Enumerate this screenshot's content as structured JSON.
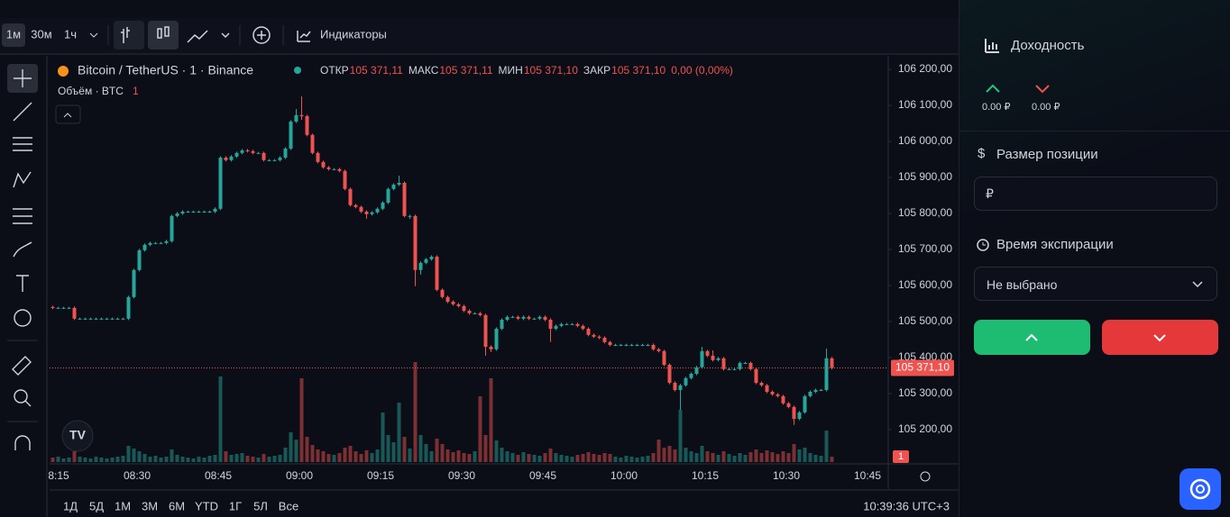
{
  "toolbar": {
    "intervals": [
      "1м",
      "30м",
      "1ч"
    ],
    "indicators": "Индикаторы"
  },
  "chart": {
    "type": "candlestick",
    "symbol": "Bitcoin / TetherUS · 1 · Binance",
    "ohlc": [
      {
        "label": "ОТКР",
        "value": "105 371,11"
      },
      {
        "label": "МАКС",
        "value": "105 371,11"
      },
      {
        "label": "МИН",
        "value": "105 371,10"
      },
      {
        "label": "ЗАКР",
        "value": "105 371,10"
      }
    ],
    "change": "0,00 (0,00%)",
    "volume_label": "Объём · BTC",
    "volume_value": "1",
    "ylim": [
      105105,
      106237.5
    ],
    "yticks": [
      {
        "value": 106200,
        "label": "106 200,00"
      },
      {
        "value": 106100,
        "label": "106 100,00"
      },
      {
        "value": 106000,
        "label": "106 000,00"
      },
      {
        "value": 105900,
        "label": "105 900,00"
      },
      {
        "value": 105800,
        "label": "105 800,00"
      },
      {
        "value": 105700,
        "label": "105 700,00"
      },
      {
        "value": 105600,
        "label": "105 600,00"
      },
      {
        "value": 105500,
        "label": "105 500,00"
      },
      {
        "value": 105400,
        "label": "105 400,00"
      },
      {
        "value": 105300,
        "label": "105 300,00"
      },
      {
        "value": 105200,
        "label": "105 200,00"
      }
    ],
    "last_price": {
      "value": 105371.1,
      "label": "105 371,10"
    },
    "volume_tag": "1",
    "xticks": [
      "8:15",
      "08:30",
      "08:45",
      "09:00",
      "09:15",
      "09:30",
      "09:45",
      "10:00",
      "10:15",
      "10:30",
      "10:45"
    ],
    "up_color": "#26a69a",
    "down_color": "#ef5350",
    "candles": [
      [
        105540,
        105544,
        105534,
        105538
      ],
      [
        105538,
        105541,
        105535,
        105538
      ],
      [
        105538,
        105541,
        105535,
        105538
      ],
      [
        105538,
        105541,
        105535,
        105538
      ],
      [
        105538,
        105542,
        105504,
        105508
      ],
      [
        105508,
        105511,
        105505,
        105508
      ],
      [
        105508,
        105511,
        105505,
        105508
      ],
      [
        105508,
        105511,
        105505,
        105508
      ],
      [
        105508,
        105511,
        105505,
        105508
      ],
      [
        105508,
        105511,
        105505,
        105508
      ],
      [
        105508,
        105511,
        105505,
        105508
      ],
      [
        105508,
        105511,
        105505,
        105508
      ],
      [
        105508,
        105511,
        105505,
        105508
      ],
      [
        105508,
        105511,
        105505,
        105508
      ],
      [
        105508,
        105572,
        105504,
        105568
      ],
      [
        105568,
        105647,
        105564,
        105643
      ],
      [
        105643,
        105702,
        105639,
        105698
      ],
      [
        105698,
        105717,
        105694,
        105713
      ],
      [
        105713,
        105722,
        105709,
        105718
      ],
      [
        105718,
        105721,
        105715,
        105718
      ],
      [
        105718,
        105721,
        105715,
        105718
      ],
      [
        105718,
        105727,
        105714,
        105723
      ],
      [
        105723,
        105797,
        105719,
        105793
      ],
      [
        105793,
        105804,
        105789,
        105800
      ],
      [
        105800,
        105809,
        105796,
        105805
      ],
      [
        105805,
        105808,
        105802,
        105805
      ],
      [
        105805,
        105808,
        105802,
        105805
      ],
      [
        105805,
        105808,
        105802,
        105805
      ],
      [
        105805,
        105808,
        105802,
        105805
      ],
      [
        105805,
        105808,
        105802,
        105805
      ],
      [
        105805,
        105817,
        105801,
        105813
      ],
      [
        105813,
        105959,
        105809,
        105955
      ],
      [
        105955,
        105959,
        105944,
        105948
      ],
      [
        105948,
        105962,
        105944,
        105958
      ],
      [
        105958,
        105972,
        105954,
        105968
      ],
      [
        105968,
        105979,
        105964,
        105975
      ],
      [
        105975,
        105979,
        105969,
        105973
      ],
      [
        105973,
        105977,
        105964,
        105968
      ],
      [
        105968,
        105971,
        105965,
        105968
      ],
      [
        105968,
        105972,
        105944,
        105948
      ],
      [
        105948,
        105951,
        105945,
        105948
      ],
      [
        105948,
        105951,
        105945,
        105948
      ],
      [
        105948,
        105959,
        105944,
        105955
      ],
      [
        105955,
        105984,
        105951,
        105980
      ],
      [
        105980,
        106059,
        105976,
        106055
      ],
      [
        106055,
        106090,
        106051,
        106073
      ],
      [
        106073,
        106125,
        106060,
        106070
      ],
      [
        106070,
        106074,
        106014,
        106018
      ],
      [
        106018,
        106022,
        105964,
        105968
      ],
      [
        105968,
        105972,
        105939,
        105943
      ],
      [
        105943,
        105947,
        105924,
        105928
      ],
      [
        105928,
        105932,
        105919,
        105923
      ],
      [
        105923,
        105926,
        105920,
        105923
      ],
      [
        105923,
        105927,
        105914,
        105918
      ],
      [
        105918,
        105922,
        105864,
        105868
      ],
      [
        105868,
        105872,
        105819,
        105823
      ],
      [
        105823,
        105827,
        105814,
        105818
      ],
      [
        105818,
        105822,
        105801,
        105805
      ],
      [
        105805,
        105809,
        105785,
        105798
      ],
      [
        105798,
        105807,
        105794,
        105803
      ],
      [
        105803,
        105817,
        105799,
        105813
      ],
      [
        105813,
        105834,
        105809,
        105830
      ],
      [
        105830,
        105872,
        105826,
        105868
      ],
      [
        105868,
        105884,
        105864,
        105880
      ],
      [
        105880,
        105905,
        105876,
        105885
      ],
      [
        105885,
        105889,
        105789,
        105793
      ],
      [
        105793,
        105797,
        105785,
        105793
      ],
      [
        105793,
        105797,
        105598,
        105643
      ],
      [
        105643,
        105667,
        105630,
        105663
      ],
      [
        105663,
        105677,
        105659,
        105673
      ],
      [
        105673,
        105684,
        105669,
        105680
      ],
      [
        105680,
        105684,
        105584,
        105588
      ],
      [
        105588,
        105592,
        105564,
        105568
      ],
      [
        105568,
        105572,
        105551,
        105555
      ],
      [
        105555,
        105559,
        105544,
        105548
      ],
      [
        105548,
        105552,
        105539,
        105543
      ],
      [
        105543,
        105547,
        105526,
        105530
      ],
      [
        105530,
        105534,
        105519,
        105523
      ],
      [
        105523,
        105526,
        105520,
        105523
      ],
      [
        105523,
        105527,
        105514,
        105518
      ],
      [
        105518,
        105522,
        105405,
        105430
      ],
      [
        105430,
        105434,
        105415,
        105423
      ],
      [
        105423,
        105484,
        105419,
        105480
      ],
      [
        105480,
        105509,
        105476,
        105505
      ],
      [
        105505,
        105517,
        105501,
        105513
      ],
      [
        105513,
        105516,
        105510,
        105513
      ],
      [
        105513,
        105517,
        105504,
        105508
      ],
      [
        105508,
        105517,
        105504,
        105513
      ],
      [
        105513,
        105517,
        105504,
        105508
      ],
      [
        105508,
        105511,
        105505,
        105508
      ],
      [
        105508,
        105517,
        105504,
        105513
      ],
      [
        105513,
        105517,
        105501,
        105505
      ],
      [
        105505,
        105509,
        105443,
        105480
      ],
      [
        105480,
        105492,
        105476,
        105488
      ],
      [
        105488,
        105497,
        105484,
        105493
      ],
      [
        105493,
        105496,
        105490,
        105493
      ],
      [
        105493,
        105496,
        105490,
        105493
      ],
      [
        105493,
        105497,
        105484,
        105488
      ],
      [
        105488,
        105492,
        105476,
        105480
      ],
      [
        105480,
        105484,
        105459,
        105463
      ],
      [
        105463,
        105467,
        105454,
        105458
      ],
      [
        105458,
        105462,
        105451,
        105455
      ],
      [
        105455,
        105459,
        105439,
        105443
      ],
      [
        105443,
        105447,
        105431,
        105435
      ],
      [
        105435,
        105438,
        105432,
        105435
      ],
      [
        105435,
        105438,
        105432,
        105435
      ],
      [
        105435,
        105438,
        105432,
        105435
      ],
      [
        105435,
        105438,
        105432,
        105435
      ],
      [
        105435,
        105438,
        105432,
        105435
      ],
      [
        105435,
        105438,
        105432,
        105435
      ],
      [
        105435,
        105438,
        105432,
        105435
      ],
      [
        105435,
        105439,
        105419,
        105423
      ],
      [
        105423,
        105427,
        105414,
        105418
      ],
      [
        105418,
        105422,
        105376,
        105380
      ],
      [
        105380,
        105384,
        105326,
        105330
      ],
      [
        105330,
        105334,
        105306,
        105310
      ],
      [
        105310,
        105327,
        105255,
        105323
      ],
      [
        105323,
        105347,
        105319,
        105343
      ],
      [
        105343,
        105359,
        105339,
        105355
      ],
      [
        105355,
        105377,
        105351,
        105373
      ],
      [
        105373,
        105430,
        105369,
        105418
      ],
      [
        105418,
        105422,
        105401,
        105405
      ],
      [
        105405,
        105420,
        105389,
        105393
      ],
      [
        105393,
        105402,
        105389,
        105398
      ],
      [
        105398,
        105402,
        105364,
        105368
      ],
      [
        105368,
        105371,
        105365,
        105368
      ],
      [
        105368,
        105371,
        105365,
        105368
      ],
      [
        105368,
        105389,
        105364,
        105385
      ],
      [
        105385,
        105388,
        105382,
        105385
      ],
      [
        105385,
        105389,
        105364,
        105368
      ],
      [
        105368,
        105372,
        105326,
        105330
      ],
      [
        105330,
        105334,
        105319,
        105323
      ],
      [
        105323,
        105327,
        105301,
        105305
      ],
      [
        105305,
        105309,
        105294,
        105298
      ],
      [
        105298,
        105302,
        105289,
        105293
      ],
      [
        105293,
        105297,
        105269,
        105273
      ],
      [
        105273,
        105277,
        105259,
        105263
      ],
      [
        105263,
        105267,
        105213,
        105230
      ],
      [
        105230,
        105252,
        105226,
        105248
      ],
      [
        105248,
        105297,
        105244,
        105293
      ],
      [
        105293,
        105309,
        105289,
        105305
      ],
      [
        105305,
        105314,
        105301,
        105310
      ],
      [
        105310,
        105313,
        105307,
        105310
      ],
      [
        105310,
        105425,
        105306,
        105398
      ],
      [
        105398,
        105402,
        105367,
        105371.1
      ]
    ],
    "volumes": [
      0.5,
      0.6,
      0.4,
      0.5,
      1.2,
      0.6,
      0.5,
      0.4,
      0.6,
      0.5,
      0.4,
      0.5,
      0.6,
      0.7,
      1.8,
      1.5,
      1.2,
      0.9,
      0.6,
      0.7,
      0.5,
      0.6,
      1.4,
      0.8,
      0.6,
      0.5,
      0.4,
      0.6,
      0.5,
      0.7,
      0.8,
      9.5,
      1.2,
      0.8,
      0.9,
      1.0,
      0.7,
      0.6,
      0.5,
      0.9,
      0.6,
      0.7,
      0.8,
      1.6,
      3.3,
      2.5,
      9.3,
      2.8,
      1.9,
      1.4,
      1.2,
      0.9,
      0.8,
      1.0,
      1.6,
      1.8,
      1.2,
      0.9,
      1.3,
      1.0,
      1.4,
      5.5,
      3.0,
      2.2,
      6.6,
      2.8,
      1.5,
      11.1,
      3.0,
      2.0,
      1.2,
      2.6,
      2.0,
      1.4,
      1.1,
      1.3,
      1.0,
      0.9,
      1.2,
      7.3,
      3.0,
      9.3,
      2.4,
      1.6,
      1.2,
      1.0,
      0.8,
      1.1,
      0.9,
      0.8,
      0.7,
      1.0,
      1.5,
      1.0,
      0.8,
      0.7,
      0.6,
      0.8,
      0.9,
      1.1,
      0.9,
      0.8,
      1.0,
      0.9,
      0.6,
      0.5,
      0.7,
      0.6,
      0.5,
      0.6,
      0.7,
      1.0,
      2.5,
      1.6,
      1.8,
      1.4,
      5.8,
      1.6,
      1.2,
      1.0,
      1.8,
      1.2,
      1.0,
      0.8,
      1.2,
      0.9,
      0.7,
      1.0,
      0.8,
      1.1,
      1.4,
      1.0,
      1.3,
      1.1,
      0.9,
      1.2,
      1.0,
      2.0,
      1.4,
      1.6,
      1.0,
      0.8,
      0.7,
      3.5,
      0.6
    ]
  },
  "range_buttons": [
    "1Д",
    "5Д",
    "1М",
    "3М",
    "6М",
    "YTD",
    "1Г",
    "5Л",
    "Все"
  ],
  "clock": "10:39:36 UTC+3",
  "panel": {
    "profit_title": "Доходность",
    "up_amount": "0.00 ₽",
    "down_amount": "0.00 ₽",
    "size_title": "Размер позиции",
    "size_placeholder": "₽",
    "expiry_title": "Время экспирации",
    "expiry_value": "Не выбрано"
  }
}
